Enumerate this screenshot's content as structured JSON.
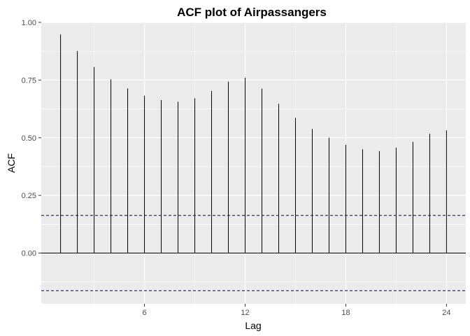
{
  "chart_data": {
    "type": "bar",
    "title": "ACF plot of Airpassangers",
    "xlabel": "Lag",
    "ylabel": "ACF",
    "x": [
      1,
      2,
      3,
      4,
      5,
      6,
      7,
      8,
      9,
      10,
      11,
      12,
      13,
      14,
      15,
      16,
      17,
      18,
      19,
      20,
      21,
      22,
      23,
      24
    ],
    "values": [
      0.948,
      0.876,
      0.807,
      0.753,
      0.714,
      0.682,
      0.663,
      0.656,
      0.671,
      0.703,
      0.743,
      0.76,
      0.713,
      0.647,
      0.586,
      0.538,
      0.5,
      0.469,
      0.45,
      0.442,
      0.457,
      0.482,
      0.517,
      0.532
    ],
    "confidence_bounds": [
      0.163,
      -0.163
    ],
    "xlim": [
      -0.15,
      25.15
    ],
    "ylim": [
      -0.22,
      1.0
    ],
    "x_ticks": [
      6,
      12,
      18,
      24
    ],
    "y_ticks": [
      0.0,
      0.25,
      0.5,
      0.75,
      1.0
    ],
    "y_tick_labels": [
      "0.00",
      "0.25",
      "0.50",
      "0.75",
      "1.00"
    ],
    "grid": true,
    "colors": {
      "panel_background": "#ebebeb",
      "grid_major": "#ffffff",
      "bar": "#000000",
      "confidence_line": "#00008b",
      "zero_line": "#000000"
    }
  }
}
